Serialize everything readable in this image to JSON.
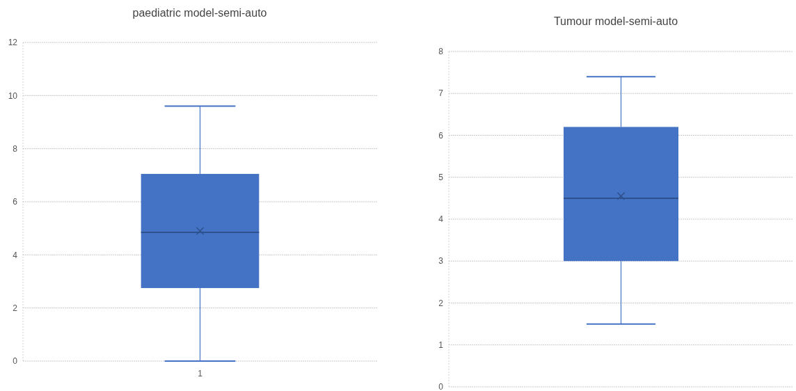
{
  "chart_data": [
    {
      "type": "box",
      "title": "paediatric model-semi-auto",
      "categories": [
        "1"
      ],
      "color": "#4472c4",
      "boxes": [
        {
          "low": 0,
          "q1": 2.75,
          "median": 4.85,
          "q3": 7.05,
          "high": 9.6,
          "mean": 4.9
        }
      ],
      "ylim": [
        0,
        12
      ],
      "yticks": [
        0,
        2,
        4,
        6,
        8,
        10,
        12
      ],
      "grid": "y"
    },
    {
      "type": "box",
      "title": "Tumour model-semi-auto",
      "categories": [
        null
      ],
      "color": "#4472c4",
      "boxes": [
        {
          "low": 1.5,
          "q1": 3.0,
          "median": 4.5,
          "q3": 6.2,
          "high": 7.4,
          "mean": 4.55
        }
      ],
      "ylim": [
        0,
        8
      ],
      "yticks": [
        0,
        1,
        2,
        3,
        4,
        5,
        6,
        7,
        8
      ],
      "grid": "y"
    }
  ]
}
